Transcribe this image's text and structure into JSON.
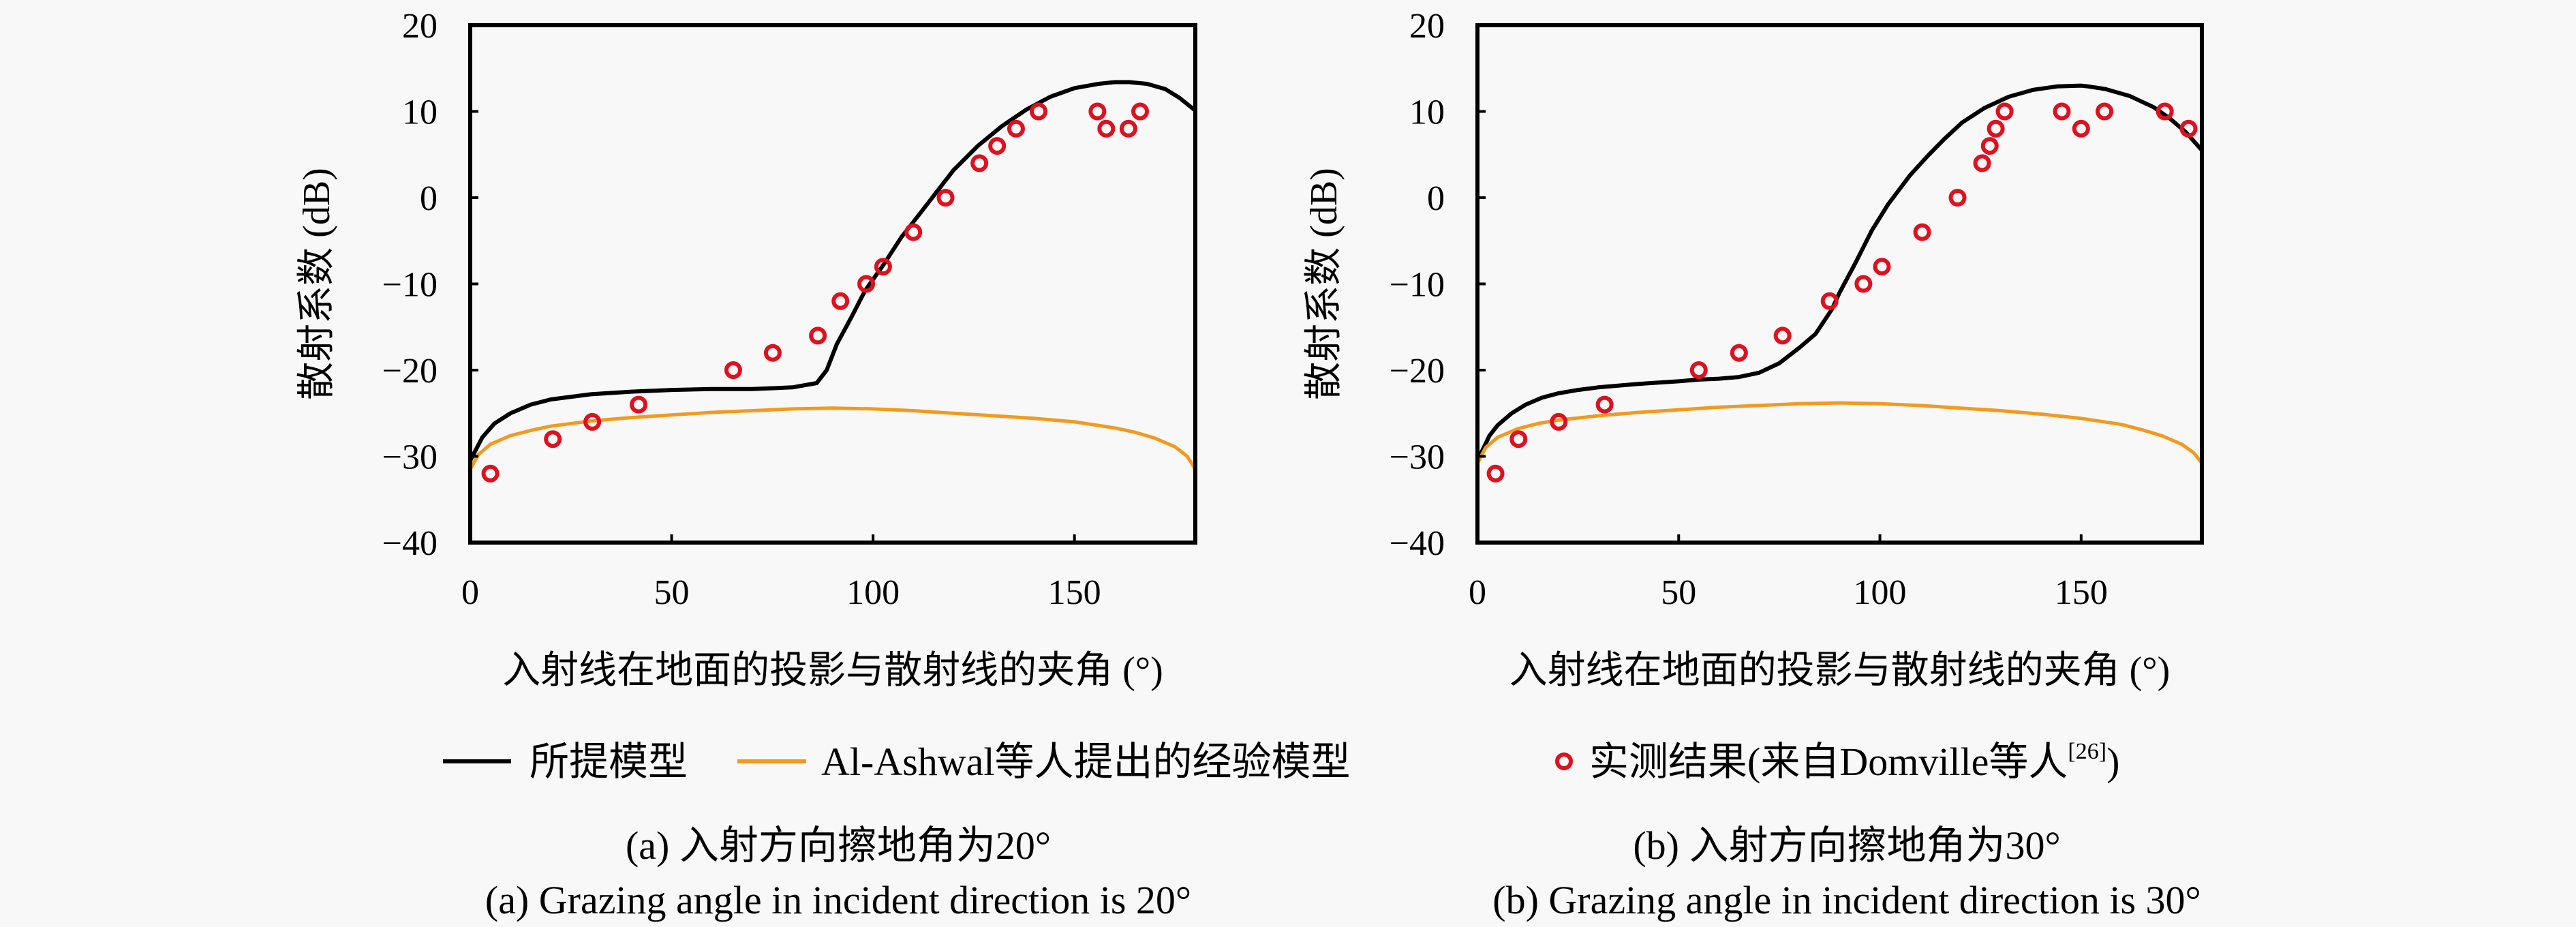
{
  "chart_data": [
    {
      "type": "line",
      "panel": "a",
      "title": "",
      "xlabel": "入射线在地面的投影与散射线的夹角 (°)",
      "ylabel": "散射系数 (dB)",
      "xlim": [
        0,
        180
      ],
      "ylim": [
        -40,
        20
      ],
      "xticks": [
        0,
        50,
        100,
        150
      ],
      "yticks": [
        -40,
        -30,
        -20,
        -10,
        0,
        10,
        20
      ],
      "ytick_labels": [
        "−40",
        "−30",
        "−20",
        "−10",
        "0",
        "10",
        "20"
      ],
      "grid": false,
      "caption_cn": "(a) 入射方向擦地角为20°",
      "caption_en": "(a) Grazing angle in incident direction is 20°",
      "series": [
        {
          "name": "所提模型",
          "kind": "line",
          "color": "#000000",
          "x": [
            0,
            3,
            6,
            10,
            15,
            20,
            30,
            40,
            50,
            60,
            70,
            80,
            86,
            88.5,
            91,
            94.8,
            98,
            102.7,
            107,
            111.7,
            116,
            120,
            126,
            132,
            138,
            144,
            150,
            156,
            160,
            163.6,
            168,
            172.5,
            176,
            180
          ],
          "y": [
            -30.5,
            -27.8,
            -26.2,
            -25.0,
            -24.0,
            -23.4,
            -22.8,
            -22.5,
            -22.3,
            -22.2,
            -22.2,
            -22.0,
            -21.5,
            -20.0,
            -17.0,
            -13.7,
            -10.8,
            -7.7,
            -4.6,
            -1.8,
            0.8,
            3.2,
            6.0,
            8.3,
            10.2,
            11.7,
            12.7,
            13.2,
            13.4,
            13.4,
            13.2,
            12.6,
            11.6,
            10.1
          ]
        },
        {
          "name": "Al-Ashwal等人提出的经验模型",
          "kind": "line",
          "color": "#f39a1e",
          "x": [
            0,
            2,
            5,
            10,
            15,
            20,
            30,
            40,
            50,
            60,
            70,
            80,
            90,
            100,
            110,
            120,
            130,
            140,
            150,
            160,
            165,
            170,
            175,
            178,
            180
          ],
          "y": [
            -31.5,
            -29.8,
            -28.6,
            -27.6,
            -27.0,
            -26.5,
            -25.9,
            -25.5,
            -25.2,
            -24.9,
            -24.7,
            -24.5,
            -24.4,
            -24.5,
            -24.7,
            -25.0,
            -25.3,
            -25.6,
            -26.0,
            -26.7,
            -27.2,
            -27.9,
            -28.9,
            -30.0,
            -31.5
          ]
        },
        {
          "name": "实测结果(来自Domville等人[26])",
          "kind": "scatter",
          "color": "#e0101f",
          "x": [
            5,
            20.5,
            30.3,
            41.8,
            65.3,
            75.1,
            86.3,
            91.9,
            98.3,
            102.5,
            110,
            118,
            126.4,
            130.8,
            135.5,
            141.1,
            155.7,
            157.9,
            163.4,
            166.3
          ],
          "y": [
            -32,
            -28,
            -26,
            -24,
            -20,
            -18,
            -16,
            -12,
            -10,
            -8,
            -4,
            0,
            4,
            6,
            8,
            10,
            10,
            8,
            8,
            10
          ]
        }
      ]
    },
    {
      "type": "line",
      "panel": "b",
      "title": "",
      "xlabel": "入射线在地面的投影与散射线的夹角 (°)",
      "ylabel": "散射系数 (dB)",
      "xlim": [
        0,
        180
      ],
      "ylim": [
        -40,
        20
      ],
      "xticks": [
        0,
        50,
        100,
        150
      ],
      "yticks": [
        -40,
        -30,
        -20,
        -10,
        0,
        10,
        20
      ],
      "ytick_labels": [
        "−40",
        "−30",
        "−20",
        "−10",
        "0",
        "10",
        "20"
      ],
      "grid": false,
      "caption_cn": "(b) 入射方向擦地角为30°",
      "caption_en": "(b) Grazing angle in incident direction is 30°",
      "series": [
        {
          "name": "所提模型",
          "kind": "line",
          "color": "#000000",
          "x": [
            0,
            3,
            5,
            8.5,
            12,
            16,
            20,
            25,
            30,
            40,
            50,
            55,
            60,
            65,
            70,
            75,
            80,
            84,
            88,
            90,
            94,
            98,
            102,
            107.5,
            112,
            116,
            120.4,
            126,
            132,
            138,
            144,
            150,
            151.8,
            156,
            162,
            168,
            172,
            176,
            180
          ],
          "y": [
            -30.5,
            -27.6,
            -26.4,
            -25.0,
            -24.0,
            -23.2,
            -22.7,
            -22.3,
            -22.0,
            -21.6,
            -21.3,
            -21.1,
            -21.0,
            -20.8,
            -20.3,
            -19.2,
            -17.4,
            -15.8,
            -13.0,
            -11.0,
            -7.5,
            -3.8,
            -0.8,
            2.6,
            4.9,
            6.8,
            8.7,
            10.4,
            11.7,
            12.5,
            12.9,
            13.0,
            12.9,
            12.6,
            11.8,
            10.5,
            9.2,
            7.6,
            5.5
          ]
        },
        {
          "name": "Al-Ashwal等人提出的经验模型",
          "kind": "line",
          "color": "#f39a1e",
          "x": [
            0,
            2,
            5,
            10,
            15,
            20,
            30,
            40,
            50,
            60,
            70,
            80,
            90,
            100,
            110,
            120,
            130,
            140,
            150,
            160,
            165,
            170,
            175,
            178,
            180
          ],
          "y": [
            -30.8,
            -29.0,
            -27.8,
            -26.8,
            -26.2,
            -25.8,
            -25.3,
            -24.9,
            -24.6,
            -24.3,
            -24.1,
            -23.9,
            -23.8,
            -23.9,
            -24.1,
            -24.4,
            -24.7,
            -25.1,
            -25.6,
            -26.3,
            -26.9,
            -27.6,
            -28.6,
            -29.6,
            -30.8
          ]
        },
        {
          "name": "实测结果(来自Domville等人[26])",
          "kind": "scatter",
          "color": "#e0101f",
          "x": [
            4.5,
            10.2,
            20.2,
            31.6,
            55,
            65,
            75.8,
            87.5,
            95.9,
            100.5,
            110.5,
            119.3,
            125.4,
            127.3,
            128.8,
            131,
            145.2,
            150,
            155.8,
            170.8,
            176.7
          ],
          "y": [
            -32,
            -28,
            -26,
            -24,
            -20,
            -18,
            -16,
            -12,
            -10,
            -8,
            -4,
            0,
            4,
            6,
            8,
            10,
            10,
            8,
            10,
            10,
            8
          ]
        }
      ]
    }
  ],
  "legend": {
    "items": [
      {
        "label": "所提模型",
        "marker": "line",
        "color": "#000000"
      },
      {
        "label": "Al-Ashwal等人提出的经验模型",
        "marker": "line",
        "color": "#f39a1e"
      },
      {
        "label": "实测结果(来自Domville等人",
        "superscript": "[26]",
        "suffix": ")",
        "marker": "circle",
        "color": "#e0101f"
      }
    ]
  }
}
